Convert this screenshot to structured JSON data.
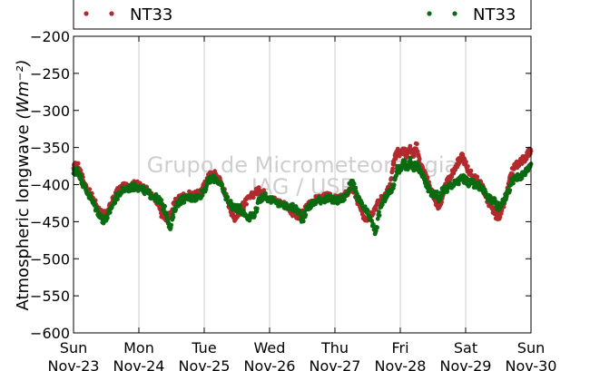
{
  "chart_data": {
    "type": "scatter",
    "title": "",
    "ylabel": "Atmospheric longwave",
    "ylabel_unit": "(Wm⁻²)",
    "ylim": [
      -600,
      -200
    ],
    "yticks": [
      -200,
      -250,
      -300,
      -350,
      -400,
      -450,
      -500,
      -550,
      -600
    ],
    "xlim": [
      0,
      7
    ],
    "xticks": [
      {
        "day": "Sun",
        "date": "Nov-23",
        "x": 0
      },
      {
        "day": "Mon",
        "date": "Nov-24",
        "x": 1
      },
      {
        "day": "Tue",
        "date": "Nov-25",
        "x": 2
      },
      {
        "day": "Wed",
        "date": "Nov-26",
        "x": 3
      },
      {
        "day": "Thu",
        "date": "Nov-27",
        "x": 4
      },
      {
        "day": "Fri",
        "date": "Nov-28",
        "x": 5
      },
      {
        "day": "Sat",
        "date": "Nov-29",
        "x": 6
      },
      {
        "day": "Sun",
        "date": "Nov-30",
        "x": 7
      }
    ],
    "grid": "x",
    "legend_placement": "top",
    "series": [
      {
        "name": "NT33",
        "color": "#b22a2e",
        "points": [
          [
            0.0,
            -378
          ],
          [
            0.05,
            -372
          ],
          [
            0.1,
            -380
          ],
          [
            0.15,
            -395
          ],
          [
            0.22,
            -408
          ],
          [
            0.3,
            -418
          ],
          [
            0.38,
            -432
          ],
          [
            0.45,
            -442
          ],
          [
            0.52,
            -438
          ],
          [
            0.58,
            -425
          ],
          [
            0.65,
            -412
          ],
          [
            0.72,
            -405
          ],
          [
            0.8,
            -402
          ],
          [
            0.88,
            -400
          ],
          [
            0.95,
            -400
          ],
          [
            1.0,
            -401
          ],
          [
            1.08,
            -405
          ],
          [
            1.15,
            -410
          ],
          [
            1.22,
            -418
          ],
          [
            1.3,
            -428
          ],
          [
            1.35,
            -440
          ],
          [
            1.42,
            -448
          ],
          [
            1.48,
            -440
          ],
          [
            1.55,
            -425
          ],
          [
            1.62,
            -418
          ],
          [
            1.7,
            -415
          ],
          [
            1.78,
            -414
          ],
          [
            1.85,
            -415
          ],
          [
            1.92,
            -412
          ],
          [
            2.0,
            -402
          ],
          [
            2.05,
            -392
          ],
          [
            2.1,
            -386
          ],
          [
            2.18,
            -386
          ],
          [
            2.25,
            -395
          ],
          [
            2.32,
            -412
          ],
          [
            2.4,
            -432
          ],
          [
            2.45,
            -445
          ],
          [
            2.52,
            -440
          ],
          [
            2.58,
            -430
          ],
          [
            2.62,
            -425
          ],
          [
            2.7,
            -418
          ],
          [
            2.78,
            -410
          ],
          [
            2.85,
            -408
          ],
          [
            2.92,
            -412
          ],
          [
            3.0,
            -418
          ],
          [
            3.1,
            -422
          ],
          [
            3.2,
            -425
          ],
          [
            3.3,
            -432
          ],
          [
            3.38,
            -440
          ],
          [
            3.45,
            -446
          ],
          [
            3.5,
            -440
          ],
          [
            3.58,
            -428
          ],
          [
            3.65,
            -422
          ],
          [
            3.72,
            -420
          ],
          [
            3.8,
            -418
          ],
          [
            3.88,
            -416
          ],
          [
            3.95,
            -418
          ],
          [
            4.02,
            -420
          ],
          [
            4.1,
            -418
          ],
          [
            4.18,
            -412
          ],
          [
            4.25,
            -405
          ],
          [
            4.3,
            -410
          ],
          [
            4.35,
            -425
          ],
          [
            4.42,
            -440
          ],
          [
            4.48,
            -446
          ],
          [
            4.55,
            -440
          ],
          [
            4.62,
            -430
          ],
          [
            4.7,
            -420
          ],
          [
            4.78,
            -412
          ],
          [
            4.85,
            -400
          ],
          [
            4.9,
            -370
          ],
          [
            4.95,
            -355
          ],
          [
            5.0,
            -358
          ],
          [
            5.05,
            -352
          ],
          [
            5.1,
            -362
          ],
          [
            5.15,
            -348
          ],
          [
            5.2,
            -362
          ],
          [
            5.25,
            -345
          ],
          [
            5.3,
            -372
          ],
          [
            5.35,
            -380
          ],
          [
            5.4,
            -392
          ],
          [
            5.45,
            -402
          ],
          [
            5.5,
            -412
          ],
          [
            5.55,
            -425
          ],
          [
            5.6,
            -430
          ],
          [
            5.65,
            -415
          ],
          [
            5.7,
            -400
          ],
          [
            5.75,
            -392
          ],
          [
            5.8,
            -385
          ],
          [
            5.85,
            -375
          ],
          [
            5.9,
            -368
          ],
          [
            5.95,
            -362
          ],
          [
            6.0,
            -372
          ],
          [
            6.05,
            -382
          ],
          [
            6.1,
            -388
          ],
          [
            6.15,
            -392
          ],
          [
            6.2,
            -396
          ],
          [
            6.25,
            -402
          ],
          [
            6.3,
            -412
          ],
          [
            6.35,
            -425
          ],
          [
            6.4,
            -432
          ],
          [
            6.45,
            -440
          ],
          [
            6.5,
            -444
          ],
          [
            6.55,
            -436
          ],
          [
            6.6,
            -422
          ],
          [
            6.65,
            -405
          ],
          [
            6.7,
            -385
          ],
          [
            6.75,
            -375
          ],
          [
            6.8,
            -372
          ],
          [
            6.85,
            -368
          ],
          [
            6.9,
            -365
          ],
          [
            6.95,
            -358
          ],
          [
            7.0,
            -355
          ]
        ]
      },
      {
        "name": "NT33",
        "color": "#0b6b10",
        "points": [
          [
            0.0,
            -385
          ],
          [
            0.05,
            -380
          ],
          [
            0.1,
            -388
          ],
          [
            0.15,
            -400
          ],
          [
            0.22,
            -412
          ],
          [
            0.3,
            -425
          ],
          [
            0.38,
            -438
          ],
          [
            0.45,
            -448
          ],
          [
            0.52,
            -445
          ],
          [
            0.58,
            -430
          ],
          [
            0.65,
            -418
          ],
          [
            0.72,
            -410
          ],
          [
            0.8,
            -406
          ],
          [
            0.88,
            -404
          ],
          [
            0.95,
            -403
          ],
          [
            1.0,
            -404
          ],
          [
            1.08,
            -408
          ],
          [
            1.15,
            -412
          ],
          [
            1.22,
            -416
          ],
          [
            1.3,
            -420
          ],
          [
            1.35,
            -426
          ],
          [
            1.42,
            -438
          ],
          [
            1.48,
            -460
          ],
          [
            1.55,
            -432
          ],
          [
            1.62,
            -422
          ],
          [
            1.7,
            -419
          ],
          [
            1.78,
            -418
          ],
          [
            1.85,
            -418
          ],
          [
            1.92,
            -416
          ],
          [
            2.0,
            -408
          ],
          [
            2.05,
            -398
          ],
          [
            2.1,
            -392
          ],
          [
            2.18,
            -392
          ],
          [
            2.25,
            -400
          ],
          [
            2.32,
            -415
          ],
          [
            2.4,
            -425
          ],
          [
            2.45,
            -432
          ],
          [
            2.52,
            -432
          ],
          [
            2.58,
            -435
          ],
          [
            2.62,
            -440
          ],
          [
            2.7,
            -444
          ],
          [
            2.78,
            -438
          ],
          [
            2.85,
            -420
          ],
          [
            2.92,
            -414
          ],
          [
            3.0,
            -420
          ],
          [
            3.1,
            -425
          ],
          [
            3.2,
            -428
          ],
          [
            3.3,
            -430
          ],
          [
            3.38,
            -432
          ],
          [
            3.45,
            -436
          ],
          [
            3.5,
            -448
          ],
          [
            3.58,
            -432
          ],
          [
            3.65,
            -426
          ],
          [
            3.72,
            -422
          ],
          [
            3.8,
            -420
          ],
          [
            3.88,
            -419
          ],
          [
            3.95,
            -420
          ],
          [
            4.02,
            -422
          ],
          [
            4.1,
            -420
          ],
          [
            4.18,
            -414
          ],
          [
            4.25,
            -395
          ],
          [
            4.3,
            -405
          ],
          [
            4.35,
            -418
          ],
          [
            4.42,
            -430
          ],
          [
            4.48,
            -436
          ],
          [
            4.55,
            -448
          ],
          [
            4.62,
            -465
          ],
          [
            4.7,
            -430
          ],
          [
            4.78,
            -415
          ],
          [
            4.85,
            -410
          ],
          [
            4.9,
            -400
          ],
          [
            4.95,
            -378
          ],
          [
            5.0,
            -380
          ],
          [
            5.05,
            -370
          ],
          [
            5.1,
            -378
          ],
          [
            5.15,
            -368
          ],
          [
            5.2,
            -378
          ],
          [
            5.25,
            -372
          ],
          [
            5.3,
            -382
          ],
          [
            5.35,
            -390
          ],
          [
            5.4,
            -400
          ],
          [
            5.45,
            -408
          ],
          [
            5.5,
            -415
          ],
          [
            5.55,
            -412
          ],
          [
            5.6,
            -420
          ],
          [
            5.65,
            -405
          ],
          [
            5.7,
            -408
          ],
          [
            5.75,
            -402
          ],
          [
            5.8,
            -400
          ],
          [
            5.85,
            -398
          ],
          [
            5.9,
            -395
          ],
          [
            5.95,
            -390
          ],
          [
            6.0,
            -395
          ],
          [
            6.05,
            -398
          ],
          [
            6.1,
            -398
          ],
          [
            6.15,
            -400
          ],
          [
            6.2,
            -402
          ],
          [
            6.25,
            -405
          ],
          [
            6.3,
            -412
          ],
          [
            6.35,
            -418
          ],
          [
            6.4,
            -420
          ],
          [
            6.45,
            -424
          ],
          [
            6.5,
            -430
          ],
          [
            6.55,
            -426
          ],
          [
            6.6,
            -418
          ],
          [
            6.65,
            -410
          ],
          [
            6.7,
            -398
          ],
          [
            6.75,
            -392
          ],
          [
            6.8,
            -390
          ],
          [
            6.85,
            -388
          ],
          [
            6.9,
            -385
          ],
          [
            6.95,
            -378
          ],
          [
            7.0,
            -372
          ]
        ]
      }
    ]
  },
  "watermark": {
    "line1": "Grupo de Micrometeorologia",
    "line2": "IAG / USP"
  }
}
